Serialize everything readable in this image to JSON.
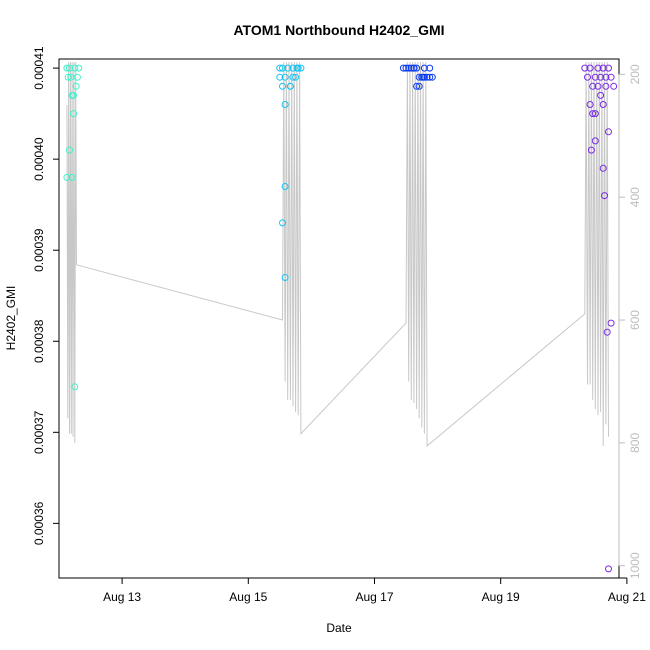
{
  "chart_data": {
    "type": "scatter",
    "title": "ATOM1 Northbound H2402_GMI",
    "xlabel": "Date",
    "ylabel": "H2402_GMI",
    "x_ticks": [
      "Aug 13",
      "Aug 15",
      "Aug 17",
      "Aug 19",
      "Aug 21"
    ],
    "y_ticks": [
      "0.00036",
      "0.00037",
      "0.00038",
      "0.00039",
      "0.00040",
      "0.00041"
    ],
    "right_axis_ticks": [
      "200",
      "400",
      "600",
      "800",
      "1000"
    ],
    "xlim": [
      "2016-08-12 00:00",
      "2016-08-20 21:00"
    ],
    "ylim": [
      0.000354,
      0.000411
    ],
    "right_axis_range": [
      1020,
      175
    ],
    "grid": false,
    "colors": {
      "frame": "#000000",
      "altitude_line": "#c8c8c8",
      "right_axis": "#bdbdbd",
      "color_ramp": [
        "#3ff2c8",
        "#14c4f0",
        "#0a3cf0",
        "#7a2be6"
      ]
    },
    "series": [
      {
        "values": [
          [
            "2016-08-12 03:00",
            0.00041
          ],
          [
            "2016-08-12 03:30",
            0.000409
          ],
          [
            "2016-08-12 04:00",
            0.00041
          ],
          [
            "2016-08-12 04:30",
            0.000409
          ],
          [
            "2016-08-12 05:00",
            0.000407
          ],
          [
            "2016-08-12 05:30",
            0.000405
          ],
          [
            "2016-08-12 06:00",
            0.00041
          ],
          [
            "2016-08-12 06:30",
            0.000408
          ],
          [
            "2016-08-12 07:00",
            0.000409
          ],
          [
            "2016-08-12 07:30",
            0.00041
          ],
          [
            "2016-08-12 04:00",
            0.000401
          ],
          [
            "2016-08-12 03:00",
            0.000398
          ],
          [
            "2016-08-12 05:00",
            0.000398
          ],
          [
            "2016-08-12 06:00",
            0.000375
          ],
          [
            "2016-08-12 05:30",
            0.000407
          ]
        ]
      },
      {
        "values": [
          [
            "2016-08-15 12:00",
            0.00041
          ],
          [
            "2016-08-15 13:00",
            0.00041
          ],
          [
            "2016-08-15 14:00",
            0.000409
          ],
          [
            "2016-08-15 15:00",
            0.00041
          ],
          [
            "2016-08-15 16:00",
            0.000408
          ],
          [
            "2016-08-15 17:00",
            0.00041
          ],
          [
            "2016-08-15 18:00",
            0.000409
          ],
          [
            "2016-08-15 19:00",
            0.00041
          ],
          [
            "2016-08-15 20:00",
            0.00041
          ],
          [
            "2016-08-15 13:00",
            0.000408
          ],
          [
            "2016-08-15 12:00",
            0.000409
          ],
          [
            "2016-08-15 14:00",
            0.000406
          ],
          [
            "2016-08-15 14:00",
            0.000397
          ],
          [
            "2016-08-15 13:00",
            0.000393
          ],
          [
            "2016-08-15 14:00",
            0.000387
          ],
          [
            "2016-08-15 16:00",
            0.000408
          ],
          [
            "2016-08-15 17:00",
            0.000409
          ],
          [
            "2016-08-15 18:30",
            0.00041
          ]
        ]
      },
      {
        "values": [
          [
            "2016-08-17 11:00",
            0.00041
          ],
          [
            "2016-08-17 12:00",
            0.00041
          ],
          [
            "2016-08-17 13:00",
            0.00041
          ],
          [
            "2016-08-17 14:00",
            0.00041
          ],
          [
            "2016-08-17 15:00",
            0.00041
          ],
          [
            "2016-08-17 16:00",
            0.00041
          ],
          [
            "2016-08-17 17:00",
            0.000409
          ],
          [
            "2016-08-17 18:00",
            0.000409
          ],
          [
            "2016-08-17 19:00",
            0.00041
          ],
          [
            "2016-08-17 20:00",
            0.000409
          ],
          [
            "2016-08-17 21:00",
            0.00041
          ],
          [
            "2016-08-17 22:00",
            0.000409
          ],
          [
            "2016-08-17 16:00",
            0.000408
          ],
          [
            "2016-08-17 19:00",
            0.000409
          ],
          [
            "2016-08-17 21:00",
            0.000409
          ],
          [
            "2016-08-17 15:00",
            0.00041
          ],
          [
            "2016-08-17 17:00",
            0.000408
          ],
          [
            "2016-08-17 18:30",
            0.000409
          ]
        ]
      },
      {
        "values": [
          [
            "2016-08-20 08:00",
            0.00041
          ],
          [
            "2016-08-20 09:00",
            0.000409
          ],
          [
            "2016-08-20 10:00",
            0.00041
          ],
          [
            "2016-08-20 11:00",
            0.000408
          ],
          [
            "2016-08-20 12:00",
            0.000409
          ],
          [
            "2016-08-20 13:00",
            0.00041
          ],
          [
            "2016-08-20 14:00",
            0.000409
          ],
          [
            "2016-08-20 15:00",
            0.00041
          ],
          [
            "2016-08-20 16:00",
            0.000409
          ],
          [
            "2016-08-20 17:00",
            0.00041
          ],
          [
            "2016-08-20 18:00",
            0.000409
          ],
          [
            "2016-08-20 19:00",
            0.000408
          ],
          [
            "2016-08-20 10:00",
            0.000406
          ],
          [
            "2016-08-20 11:00",
            0.000405
          ],
          [
            "2016-08-20 12:00",
            0.000405
          ],
          [
            "2016-08-20 13:00",
            0.000408
          ],
          [
            "2016-08-20 14:00",
            0.000407
          ],
          [
            "2016-08-20 15:00",
            0.000406
          ],
          [
            "2016-08-20 16:00",
            0.000408
          ],
          [
            "2016-08-20 12:00",
            0.000402
          ],
          [
            "2016-08-20 10:30",
            0.000401
          ],
          [
            "2016-08-20 15:00",
            0.000399
          ],
          [
            "2016-08-20 15:30",
            0.000396
          ],
          [
            "2016-08-20 17:00",
            0.000403
          ],
          [
            "2016-08-20 18:00",
            0.000382
          ],
          [
            "2016-08-20 16:30",
            0.000381
          ],
          [
            "2016-08-20 17:00",
            0.000355
          ]
        ]
      }
    ],
    "altitude_profile": [
      [
        "2016-08-12 03:00",
        250
      ],
      [
        "2016-08-12 03:20",
        760
      ],
      [
        "2016-08-12 03:40",
        180
      ],
      [
        "2016-08-12 04:00",
        785
      ],
      [
        "2016-08-12 04:20",
        180
      ],
      [
        "2016-08-12 04:40",
        785
      ],
      [
        "2016-08-12 05:00",
        180
      ],
      [
        "2016-08-12 05:20",
        790
      ],
      [
        "2016-08-12 05:40",
        180
      ],
      [
        "2016-08-12 06:00",
        800
      ],
      [
        "2016-08-12 06:20",
        180
      ],
      [
        "2016-08-12 06:40",
        510
      ],
      [
        "2016-08-15 13:00",
        600
      ],
      [
        "2016-08-15 13:30",
        180
      ],
      [
        "2016-08-15 14:00",
        700
      ],
      [
        "2016-08-15 14:30",
        180
      ],
      [
        "2016-08-15 15:00",
        730
      ],
      [
        "2016-08-15 15:30",
        180
      ],
      [
        "2016-08-15 16:00",
        730
      ],
      [
        "2016-08-15 16:30",
        180
      ],
      [
        "2016-08-15 17:00",
        740
      ],
      [
        "2016-08-15 17:30",
        180
      ],
      [
        "2016-08-15 18:00",
        750
      ],
      [
        "2016-08-15 18:30",
        180
      ],
      [
        "2016-08-15 19:00",
        755
      ],
      [
        "2016-08-15 19:30",
        180
      ],
      [
        "2016-08-15 20:00",
        785
      ],
      [
        "2016-08-17 12:00",
        605
      ],
      [
        "2016-08-17 12:30",
        180
      ],
      [
        "2016-08-17 13:00",
        700
      ],
      [
        "2016-08-17 13:30",
        180
      ],
      [
        "2016-08-17 14:00",
        730
      ],
      [
        "2016-08-17 14:30",
        180
      ],
      [
        "2016-08-17 15:00",
        735
      ],
      [
        "2016-08-17 15:30",
        180
      ],
      [
        "2016-08-17 16:00",
        745
      ],
      [
        "2016-08-17 16:30",
        180
      ],
      [
        "2016-08-17 17:00",
        760
      ],
      [
        "2016-08-17 17:30",
        180
      ],
      [
        "2016-08-17 18:00",
        775
      ],
      [
        "2016-08-17 18:30",
        180
      ],
      [
        "2016-08-17 19:00",
        785
      ],
      [
        "2016-08-17 19:30",
        180
      ],
      [
        "2016-08-17 20:00",
        805
      ],
      [
        "2016-08-20 08:00",
        590
      ],
      [
        "2016-08-20 08:30",
        180
      ],
      [
        "2016-08-20 09:00",
        705
      ],
      [
        "2016-08-20 09:30",
        180
      ],
      [
        "2016-08-20 10:00",
        705
      ],
      [
        "2016-08-20 10:30",
        180
      ],
      [
        "2016-08-20 11:00",
        730
      ],
      [
        "2016-08-20 11:30",
        180
      ],
      [
        "2016-08-20 12:00",
        745
      ],
      [
        "2016-08-20 12:30",
        180
      ],
      [
        "2016-08-20 13:00",
        755
      ],
      [
        "2016-08-20 13:30",
        180
      ],
      [
        "2016-08-20 14:00",
        750
      ],
      [
        "2016-08-20 14:30",
        180
      ],
      [
        "2016-08-20 15:00",
        805
      ],
      [
        "2016-08-20 15:30",
        180
      ],
      [
        "2016-08-20 16:00",
        770
      ],
      [
        "2016-08-20 16:30",
        180
      ],
      [
        "2016-08-20 17:00",
        790
      ]
    ]
  }
}
